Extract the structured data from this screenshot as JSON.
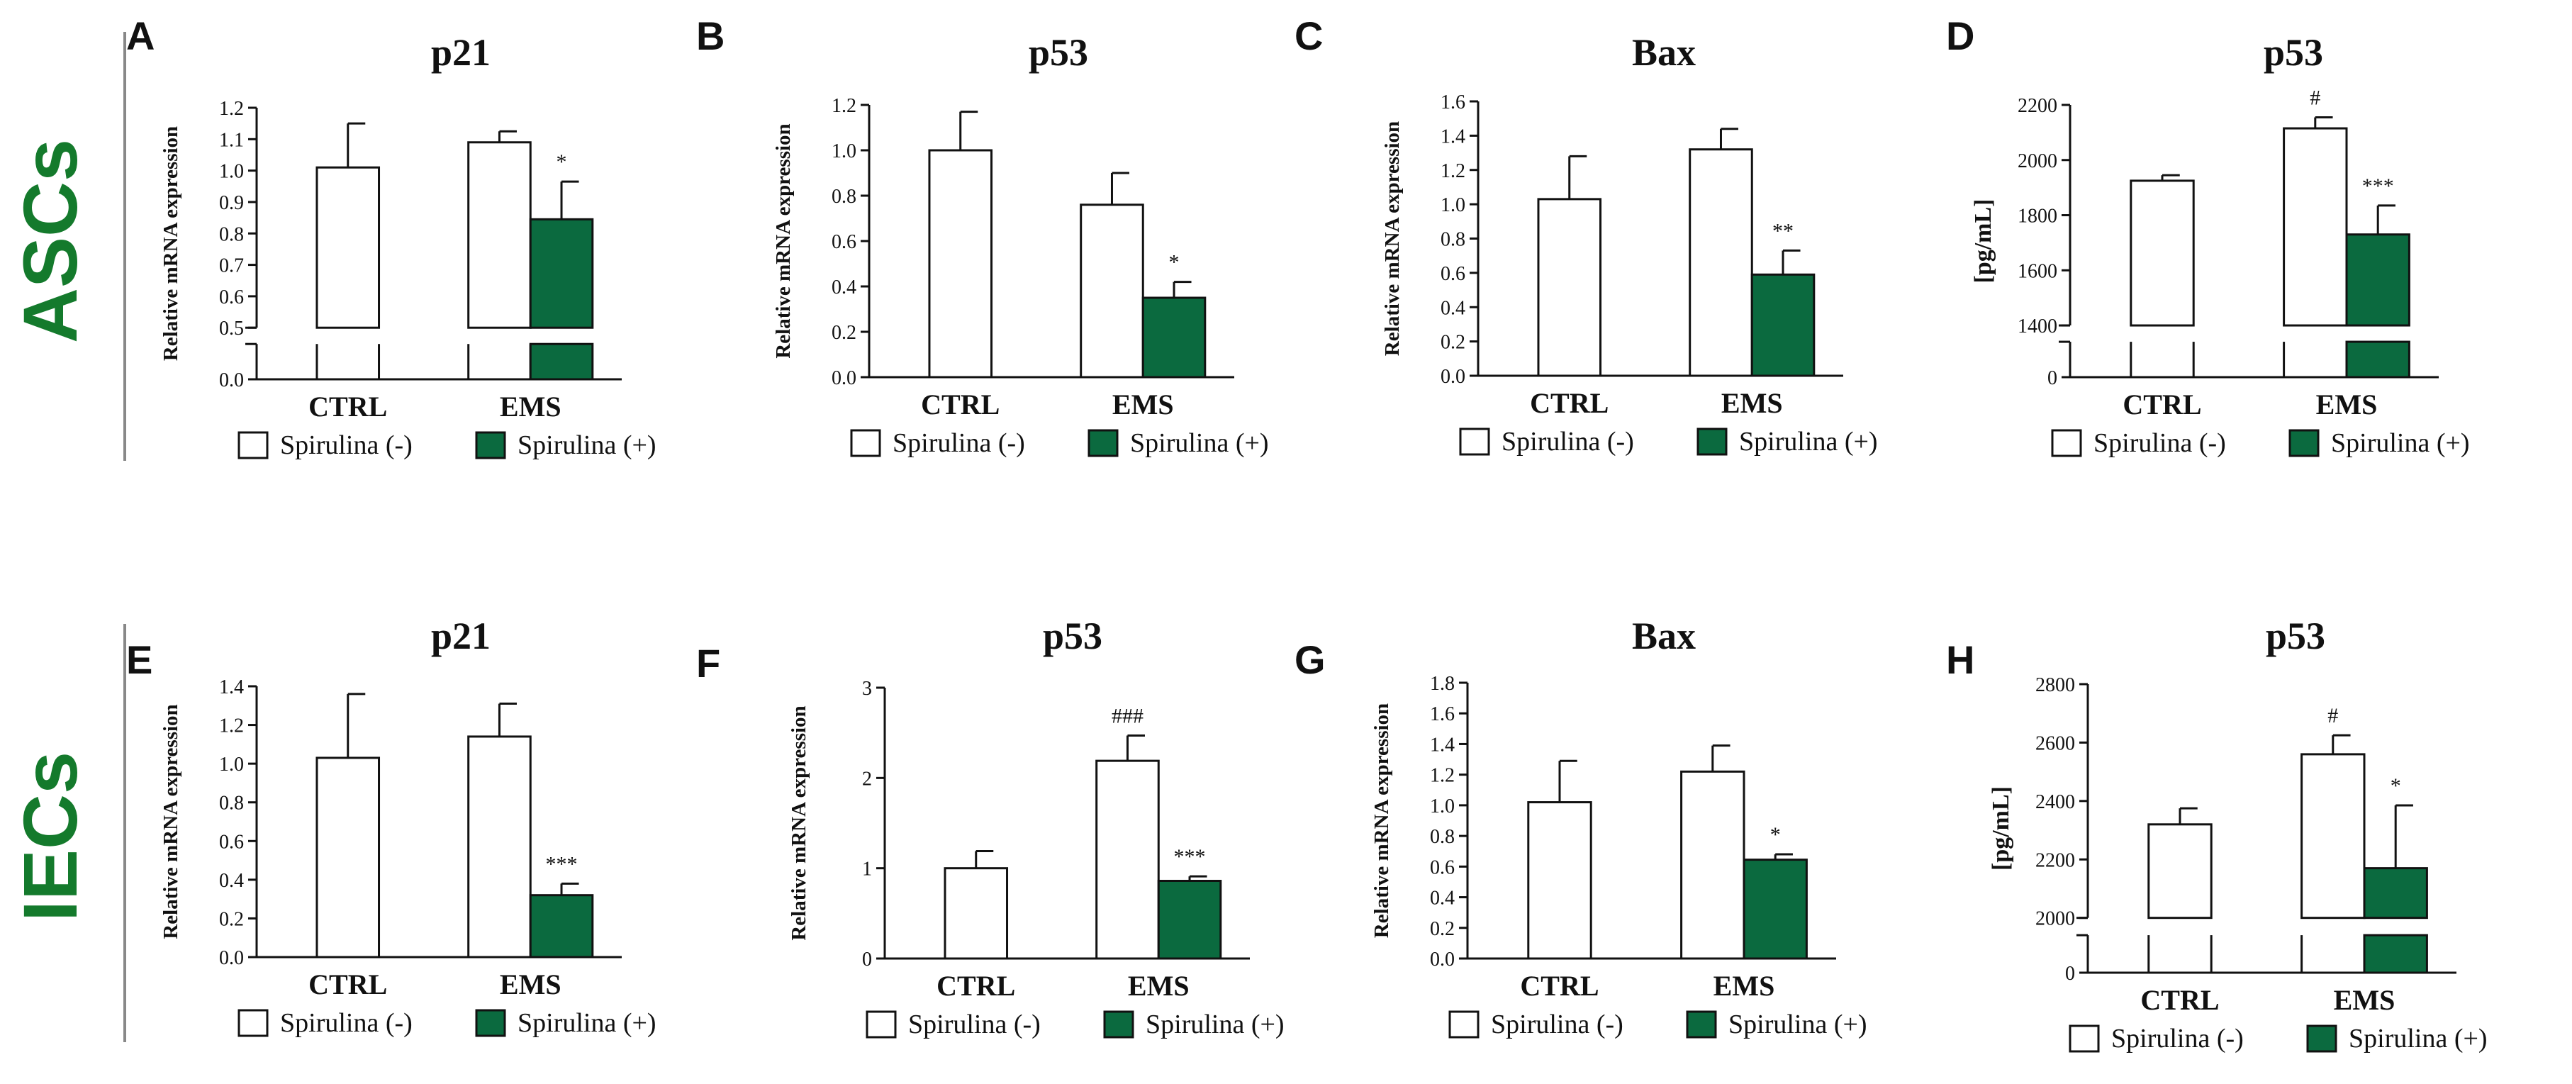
{
  "row_labels": [
    "ASCs",
    "IECs"
  ],
  "colors": {
    "green": "#0b6a3f",
    "row_label": "#147a2c",
    "white": "#ffffff",
    "stroke": "#111111"
  },
  "legend": {
    "minus": "Spirulina (-)",
    "plus": "Spirulina (+)"
  },
  "chart_data": [
    {
      "type": "bar",
      "panel": "A",
      "title": "p21",
      "ylabel": "Relative mRNA expression",
      "categories": [
        "CTRL",
        "EMS"
      ],
      "ylim": [
        0,
        1.2
      ],
      "axis_break": {
        "lower": [
          0,
          0.05
        ],
        "upper": [
          0.5,
          1.2
        ]
      },
      "yticks": [
        0.0,
        0.5,
        0.6,
        0.7,
        0.8,
        0.9,
        1.0,
        1.1,
        1.2
      ],
      "ytick_labels": [
        "0.0",
        "0.5",
        "0.6",
        "0.7",
        "0.8",
        "0.9",
        "1.0",
        "1.1",
        "1.2"
      ],
      "series": [
        {
          "name": "Spirulina (-)",
          "values": [
            1.01,
            1.09
          ],
          "errors": [
            0.14,
            0.035
          ]
        },
        {
          "name": "Spirulina (+)",
          "values": [
            null,
            0.845
          ],
          "errors": [
            null,
            0.12
          ]
        }
      ],
      "annotations": [
        {
          "series": 1,
          "category": 1,
          "text": "*"
        }
      ]
    },
    {
      "type": "bar",
      "panel": "B",
      "title": "p53",
      "ylabel": "Relative mRNA expression",
      "categories": [
        "CTRL",
        "EMS"
      ],
      "ylim": [
        0,
        1.2
      ],
      "yticks": [
        0.0,
        0.2,
        0.4,
        0.6,
        0.8,
        1.0,
        1.2
      ],
      "ytick_labels": [
        "0.0",
        "0.2",
        "0.4",
        "0.6",
        "0.8",
        "1.0",
        "1.2"
      ],
      "series": [
        {
          "name": "Spirulina (-)",
          "values": [
            1.0,
            0.76
          ],
          "errors": [
            0.17,
            0.14
          ]
        },
        {
          "name": "Spirulina (+)",
          "values": [
            null,
            0.35
          ],
          "errors": [
            null,
            0.07
          ]
        }
      ],
      "annotations": [
        {
          "series": 1,
          "category": 1,
          "text": "*"
        }
      ]
    },
    {
      "type": "bar",
      "panel": "C",
      "title": "Bax",
      "ylabel": "Relative mRNA expression",
      "categories": [
        "CTRL",
        "EMS"
      ],
      "ylim": [
        0,
        1.6
      ],
      "yticks": [
        0.0,
        0.2,
        0.4,
        0.6,
        0.8,
        1.0,
        1.2,
        1.4,
        1.6
      ],
      "ytick_labels": [
        "0.0",
        "0.2",
        "0.4",
        "0.6",
        "0.8",
        "1.0",
        "1.2",
        "1.4",
        "1.6"
      ],
      "series": [
        {
          "name": "Spirulina (-)",
          "values": [
            1.03,
            1.32
          ],
          "errors": [
            0.25,
            0.12
          ]
        },
        {
          "name": "Spirulina (+)",
          "values": [
            null,
            0.59
          ],
          "errors": [
            null,
            0.14
          ]
        }
      ],
      "annotations": [
        {
          "series": 1,
          "category": 1,
          "text": "**"
        }
      ]
    },
    {
      "type": "bar",
      "panel": "D",
      "title": "p53",
      "ylabel": "[pg/mL]",
      "categories": [
        "CTRL",
        "EMS"
      ],
      "ylim": [
        0,
        2200
      ],
      "axis_break": {
        "lower": [
          0,
          100
        ],
        "upper": [
          1400,
          2200
        ]
      },
      "yticks": [
        0,
        1400,
        1600,
        1800,
        2000,
        2200
      ],
      "ytick_labels": [
        "0",
        "1400",
        "1600",
        "1800",
        "2000",
        "2200"
      ],
      "series": [
        {
          "name": "Spirulina (-)",
          "values": [
            1925,
            2115
          ],
          "errors": [
            20,
            40
          ]
        },
        {
          "name": "Spirulina (+)",
          "values": [
            null,
            1730
          ],
          "errors": [
            null,
            105
          ]
        }
      ],
      "annotations": [
        {
          "series": 0,
          "category": 1,
          "text": "#"
        },
        {
          "series": 1,
          "category": 1,
          "text": "***"
        }
      ]
    },
    {
      "type": "bar",
      "panel": "E",
      "title": "p21",
      "ylabel": "Relative mRNA expression",
      "categories": [
        "CTRL",
        "EMS"
      ],
      "ylim": [
        0,
        1.4
      ],
      "yticks": [
        0.0,
        0.2,
        0.4,
        0.6,
        0.8,
        1.0,
        1.2,
        1.4
      ],
      "ytick_labels": [
        "0.0",
        "0.2",
        "0.4",
        "0.6",
        "0.8",
        "1.0",
        "1.2",
        "1.4"
      ],
      "series": [
        {
          "name": "Spirulina (-)",
          "values": [
            1.03,
            1.14
          ],
          "errors": [
            0.33,
            0.17
          ]
        },
        {
          "name": "Spirulina (+)",
          "values": [
            null,
            0.32
          ],
          "errors": [
            null,
            0.06
          ]
        }
      ],
      "annotations": [
        {
          "series": 1,
          "category": 1,
          "text": "***"
        }
      ]
    },
    {
      "type": "bar",
      "panel": "F",
      "title": "p53",
      "ylabel": "Relative mRNA expression",
      "categories": [
        "CTRL",
        "EMS"
      ],
      "ylim": [
        0,
        3
      ],
      "yticks": [
        0,
        1,
        2,
        3
      ],
      "ytick_labels": [
        "0",
        "1",
        "2",
        "3"
      ],
      "series": [
        {
          "name": "Spirulina (-)",
          "values": [
            1.0,
            2.19
          ],
          "errors": [
            0.19,
            0.28
          ]
        },
        {
          "name": "Spirulina (+)",
          "values": [
            null,
            0.86
          ],
          "errors": [
            null,
            0.05
          ]
        }
      ],
      "annotations": [
        {
          "series": 0,
          "category": 1,
          "text": "###"
        },
        {
          "series": 1,
          "category": 1,
          "text": "***"
        }
      ]
    },
    {
      "type": "bar",
      "panel": "G",
      "title": "Bax",
      "ylabel": "Relative mRNA expression",
      "categories": [
        "CTRL",
        "EMS"
      ],
      "ylim": [
        0,
        1.8
      ],
      "yticks": [
        0.0,
        0.2,
        0.4,
        0.6,
        0.8,
        1.0,
        1.2,
        1.4,
        1.6,
        1.8
      ],
      "ytick_labels": [
        "0.0",
        "0.2",
        "0.4",
        "0.6",
        "0.8",
        "1.0",
        "1.2",
        "1.4",
        "1.6",
        "1.8"
      ],
      "series": [
        {
          "name": "Spirulina (-)",
          "values": [
            1.02,
            1.22
          ],
          "errors": [
            0.27,
            0.17
          ]
        },
        {
          "name": "Spirulina (+)",
          "values": [
            null,
            0.645
          ],
          "errors": [
            null,
            0.035
          ]
        }
      ],
      "annotations": [
        {
          "series": 1,
          "category": 1,
          "text": "*"
        }
      ]
    },
    {
      "type": "bar",
      "panel": "H",
      "title": "p53",
      "ylabel": "[pg/mL]",
      "categories": [
        "CTRL",
        "EMS"
      ],
      "ylim": [
        0,
        2800
      ],
      "axis_break": {
        "lower": [
          0,
          100
        ],
        "upper": [
          2000,
          2800
        ]
      },
      "yticks": [
        0,
        2000,
        2200,
        2400,
        2600,
        2800
      ],
      "ytick_labels": [
        "0",
        "2000",
        "2200",
        "2400",
        "2600",
        "2800"
      ],
      "series": [
        {
          "name": "Spirulina (-)",
          "values": [
            2320,
            2560
          ],
          "errors": [
            55,
            65
          ]
        },
        {
          "name": "Spirulina (+)",
          "values": [
            null,
            2170
          ],
          "errors": [
            null,
            215
          ]
        }
      ],
      "annotations": [
        {
          "series": 0,
          "category": 1,
          "text": "#"
        },
        {
          "series": 1,
          "category": 1,
          "text": "*"
        }
      ]
    }
  ]
}
